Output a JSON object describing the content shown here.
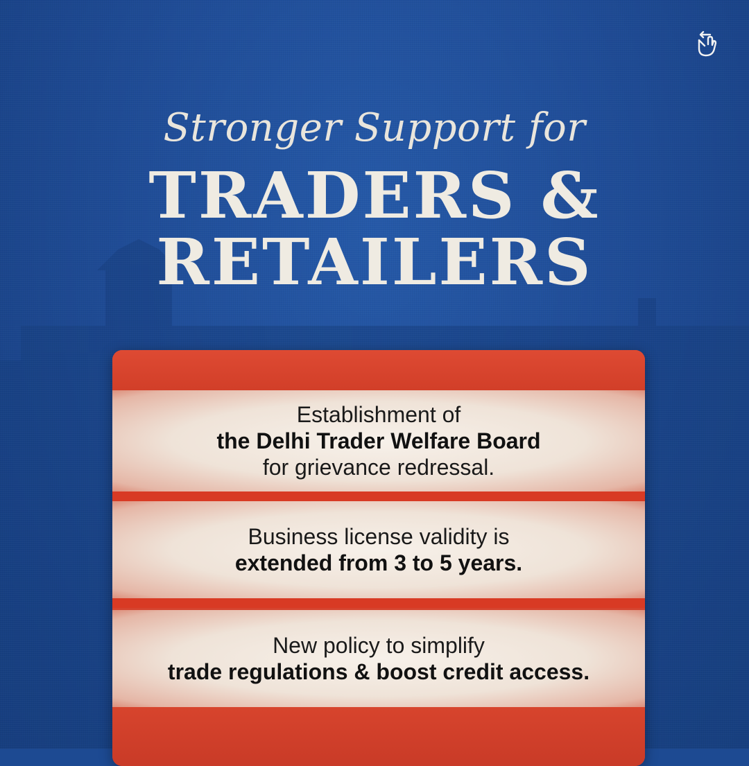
{
  "colors": {
    "background": "#1f4c97",
    "card": "#d8442d",
    "band": "#f4ece4",
    "title": "#efebe2"
  },
  "header": {
    "subtitle": "Stronger Support for",
    "title_line1": "TRADERS &",
    "title_line2": "RETAILERS"
  },
  "swipe_icon": "swipe-hand-icon",
  "points": [
    {
      "line1": "Establishment of",
      "line2": "the Delhi Trader Welfare Board",
      "line3": "for grievance redressal."
    },
    {
      "line1": "Business license validity is",
      "line2": "extended from 3 to 5 years."
    },
    {
      "line1": "New policy to simplify",
      "line2": "trade regulations & boost credit access."
    }
  ]
}
